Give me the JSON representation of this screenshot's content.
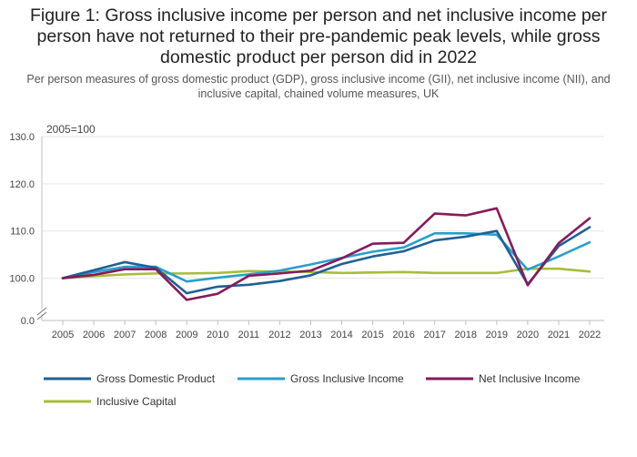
{
  "chart_data": {
    "type": "line",
    "title": "Figure 1: Gross inclusive income per person and net inclusive income per person have not returned to their pre-pandemic peak levels, while gross domestic product per person did in 2022",
    "subtitle": "Per person measures of gross domestic product (GDP), gross inclusive income (GII), net inclusive income (NII), and inclusive capital, chained volume measures, UK",
    "ylabel": "2005=100",
    "y_ticks": [
      "130.0",
      "120.0",
      "110.0",
      "100.0",
      "0.0"
    ],
    "ylim": [
      96,
      130
    ],
    "y_axis_break": true,
    "x": [
      "2005",
      "2006",
      "2007",
      "2008",
      "2009",
      "2010",
      "2011",
      "2012",
      "2013",
      "2014",
      "2015",
      "2016",
      "2017",
      "2018",
      "2019",
      "2020",
      "2021",
      "2022"
    ],
    "grid": true,
    "legend_position": "bottom",
    "series": [
      {
        "name": "Gross Domestic Product",
        "color": "#206095",
        "values": [
          100.0,
          101.7,
          103.4,
          102.2,
          96.8,
          98.2,
          98.6,
          99.4,
          100.6,
          103.0,
          104.6,
          105.7,
          108.0,
          108.8,
          110.0,
          98.7,
          106.8,
          110.8
        ]
      },
      {
        "name": "Gross Inclusive Income",
        "color": "#27A0CC",
        "values": [
          100.0,
          101.3,
          102.4,
          102.4,
          99.3,
          100.1,
          100.8,
          101.6,
          102.9,
          104.3,
          105.6,
          106.5,
          109.5,
          109.5,
          109.2,
          101.8,
          104.6,
          107.6
        ]
      },
      {
        "name": "Net Inclusive Income",
        "color": "#871A5B",
        "values": [
          100.0,
          100.7,
          101.9,
          101.9,
          95.4,
          96.7,
          100.5,
          101.0,
          101.6,
          104.2,
          107.3,
          107.5,
          113.7,
          113.3,
          114.8,
          98.5,
          107.4,
          112.7
        ]
      },
      {
        "name": "Inclusive Capital",
        "color": "#A8BD3A",
        "values": [
          100.0,
          100.4,
          100.8,
          101.0,
          101.0,
          101.1,
          101.5,
          101.4,
          101.3,
          101.1,
          101.2,
          101.3,
          101.1,
          101.1,
          101.1,
          102.0,
          102.0,
          101.4
        ]
      }
    ]
  }
}
